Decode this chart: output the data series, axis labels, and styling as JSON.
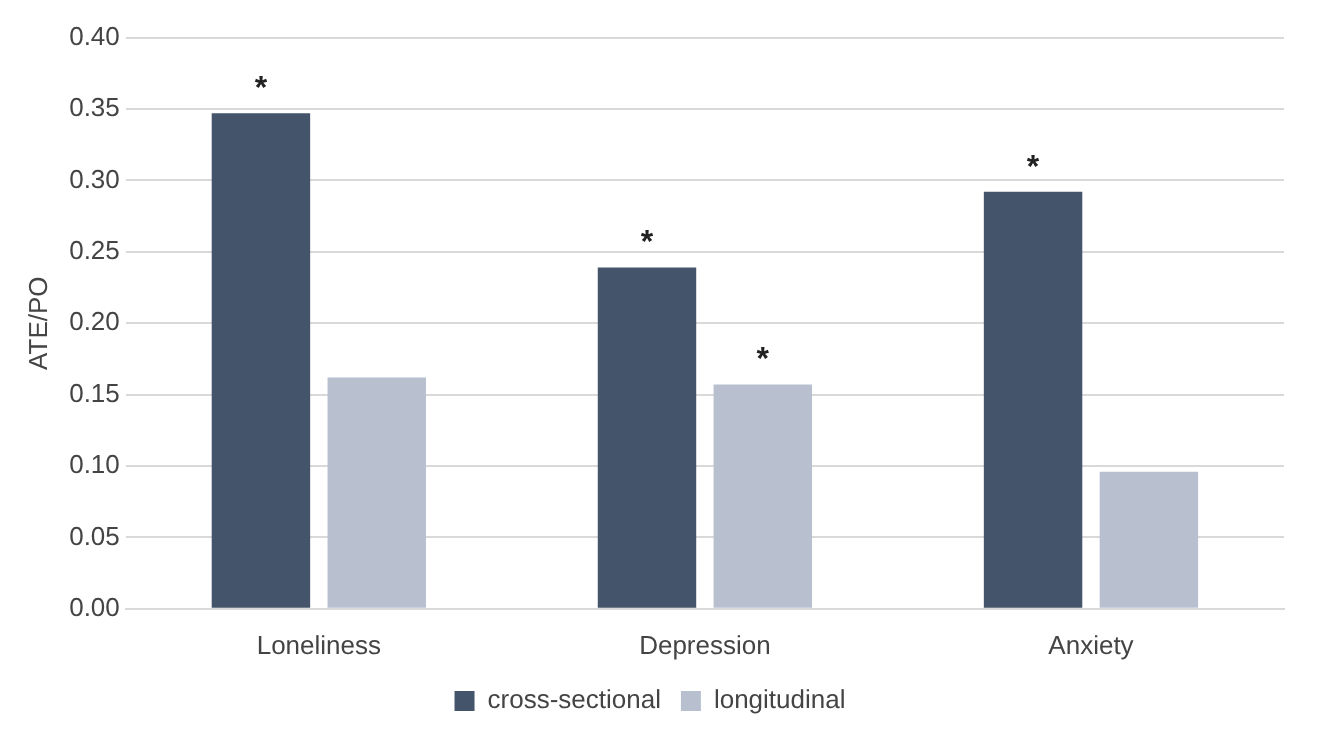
{
  "chart_data": {
    "type": "bar",
    "ylabel": "ATE/PO",
    "categories": [
      "Loneliness",
      "Depression",
      "Anxiety"
    ],
    "series": [
      {
        "name": "cross-sectional",
        "color": "#44546a",
        "values": [
          0.347,
          0.239,
          0.292
        ]
      },
      {
        "name": "longitudinal",
        "color": "#b8c0d0",
        "values": [
          0.162,
          0.157,
          0.096
        ]
      }
    ],
    "ylim": [
      0,
      0.4
    ],
    "yticks": [
      {
        "value": 0,
        "label": "0.00"
      },
      {
        "value": 0.05,
        "label": "0.05"
      },
      {
        "value": 0.1,
        "label": "0.10"
      },
      {
        "value": 0.15,
        "label": "0.15"
      },
      {
        "value": 0.2,
        "label": "0.20"
      },
      {
        "value": 0.25,
        "label": "0.25"
      },
      {
        "value": 0.3,
        "label": "0.30"
      },
      {
        "value": 0.35,
        "label": "0.35"
      },
      {
        "value": 0.4,
        "label": "0.40"
      }
    ],
    "annotations": [
      {
        "text": "*",
        "x": "Loneliness",
        "y": 0.347
      },
      {
        "text": "*",
        "x": "Depression",
        "y": 0.239
      },
      {
        "text": "*",
        "x": "Depression",
        "y": 0.157
      },
      {
        "text": "*",
        "x": "Anxiety",
        "y": 0.292
      }
    ],
    "grid": "y",
    "legend": "bottom"
  }
}
